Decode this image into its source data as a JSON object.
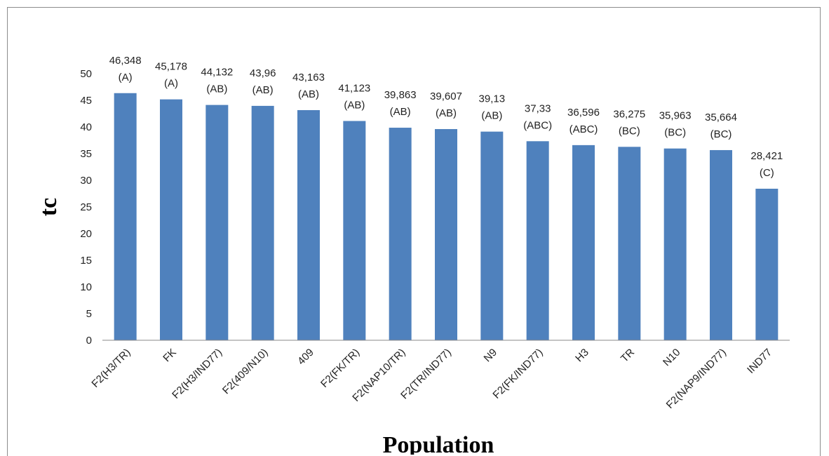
{
  "chart_data": {
    "type": "bar",
    "xlabel": "Population",
    "ylabel": "tc",
    "ylim": [
      0,
      50
    ],
    "ytick_step": 5,
    "grid": false,
    "bar_color": "#4f81bd",
    "categories": [
      "F2(H3/TR)",
      "FK",
      "F2(H3/IND77)",
      "F2(409/N10)",
      "409",
      "F2(FK/TR)",
      "F2(NAP10/TR)",
      "F2(TR/IND77)",
      "N9",
      "F2(FK/IND77)",
      "H3",
      "TR",
      "N10",
      "F2(NAP9/IND77)",
      "IND77"
    ],
    "values": [
      46.348,
      45.178,
      44.132,
      43.96,
      43.163,
      41.123,
      39.863,
      39.607,
      39.13,
      37.33,
      36.596,
      36.275,
      35.963,
      35.664,
      28.421
    ],
    "value_labels": [
      "46,348",
      "45,178",
      "44,132",
      "43,96",
      "43,163",
      "41,123",
      "39,863",
      "39,607",
      "39,13",
      "37,33",
      "36,596",
      "36,275",
      "35,963",
      "35,664",
      "28,421"
    ],
    "group_labels": [
      "(A)",
      "(A)",
      "(AB)",
      "(AB)",
      "(AB)",
      "(AB)",
      "(AB)",
      "(AB)",
      "(AB)",
      "(ABC)",
      "(ABC)",
      "(BC)",
      "(BC)",
      "(BC)",
      "(C)"
    ],
    "yticks": [
      "0",
      "5",
      "10",
      "15",
      "20",
      "25",
      "30",
      "35",
      "40",
      "45",
      "50"
    ]
  }
}
